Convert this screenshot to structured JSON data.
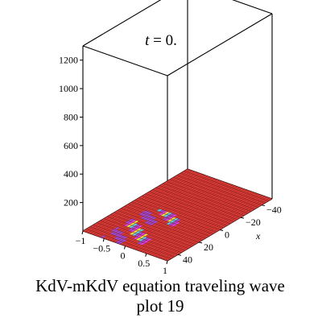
{
  "chart_data": {
    "type": "surface3d",
    "title_var": "t",
    "title_rest": " = 0.",
    "xlabel": "x",
    "ylabel": "",
    "zlabel": "",
    "x_ticks": [
      "40",
      "20",
      "0",
      "−20",
      "−40"
    ],
    "y_ticks": [
      "−1",
      "−0.5",
      "0",
      "0.5",
      "1"
    ],
    "z_ticks": [
      "200",
      "400",
      "600",
      "800",
      "1000",
      "1200"
    ],
    "x_range": [
      -50,
      50
    ],
    "y_range": [
      -1,
      1
    ],
    "z_range": [
      0,
      1300
    ],
    "surface_value": 0,
    "colors": {
      "surface": "#d83a36",
      "stripe_magenta": "#e23ee6",
      "stripe_yellow": "#f0e040",
      "stripe_cyan": "#58d2e6",
      "stripe_purple": "#a04bd8",
      "mesh": "#7a1512"
    }
  },
  "caption": {
    "line1": "KdV-mKdV equation  traveling wave",
    "line2": "plot 19"
  }
}
